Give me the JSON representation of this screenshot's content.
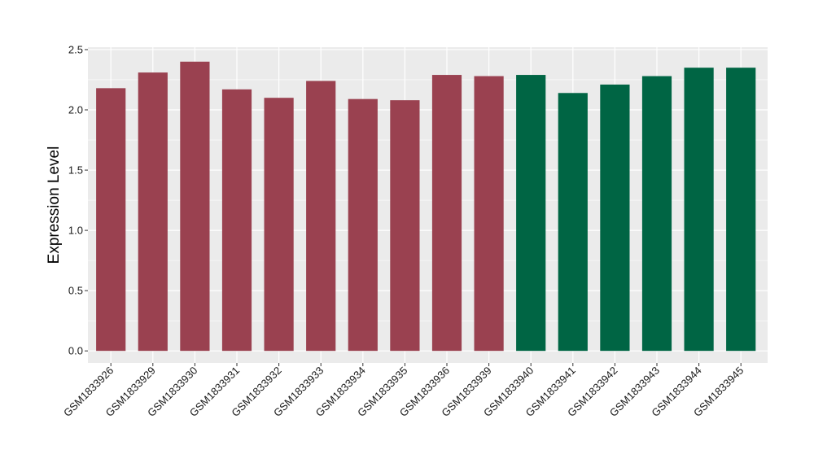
{
  "chart_data": {
    "type": "bar",
    "title": "",
    "xlabel": "",
    "ylabel": "Expression Level",
    "ylim": [
      -0.1,
      2.52
    ],
    "yticks": [
      0.0,
      0.5,
      1.0,
      1.5,
      2.0,
      2.5
    ],
    "ytick_labels": [
      "0.0",
      "0.5",
      "1.0",
      "1.5",
      "2.0",
      "2.5"
    ],
    "grid": true,
    "legend": "none",
    "categories": [
      "GSM1833926",
      "GSM1833929",
      "GSM1833930",
      "GSM1833931",
      "GSM1833932",
      "GSM1833933",
      "GSM1833934",
      "GSM1833935",
      "GSM1833936",
      "GSM1833939",
      "GSM1833940",
      "GSM1833941",
      "GSM1833942",
      "GSM1833943",
      "GSM1833944",
      "GSM1833945"
    ],
    "values": [
      2.18,
      2.31,
      2.4,
      2.17,
      2.1,
      2.24,
      2.09,
      2.08,
      2.29,
      2.28,
      2.29,
      2.14,
      2.21,
      2.28,
      2.35,
      2.35
    ],
    "bar_colors": [
      "#9a4150",
      "#9a4150",
      "#9a4150",
      "#9a4150",
      "#9a4150",
      "#9a4150",
      "#9a4150",
      "#9a4150",
      "#9a4150",
      "#9a4150",
      "#006544",
      "#006544",
      "#006544",
      "#006544",
      "#006544",
      "#006544"
    ],
    "panel_background": "#ebebeb",
    "grid_color": "#ffffff"
  }
}
